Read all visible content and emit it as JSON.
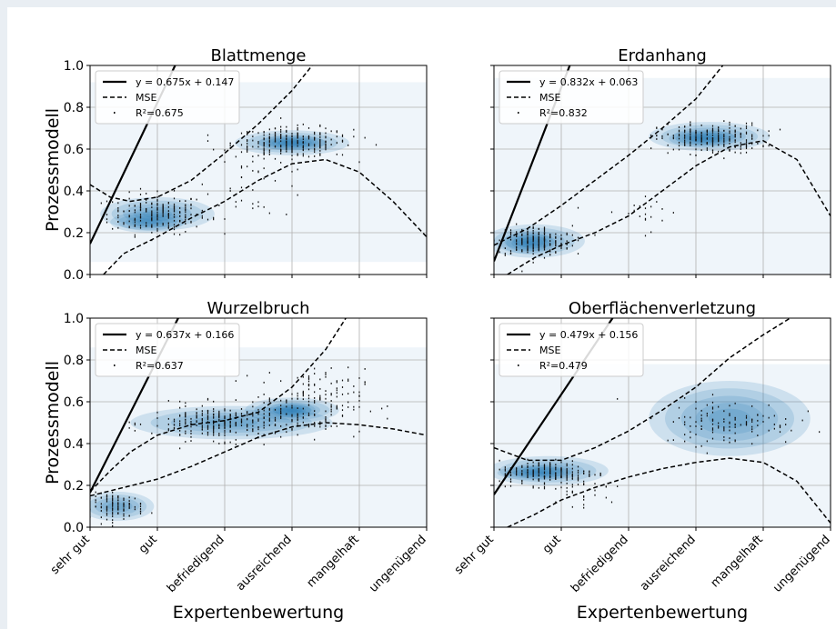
{
  "figure": {
    "ylabel": "Prozessmodell",
    "xlabel": "Expertenbewertung",
    "x_tick_labels": [
      "sehr gut",
      "gut",
      "befriedigend",
      "ausreichend",
      "mangelhaft",
      "ungenügend"
    ],
    "y_tick_labels": [
      "0.0",
      "0.2",
      "0.4",
      "0.6",
      "0.8",
      "1.0"
    ],
    "colors": {
      "density": "#1f77b4",
      "line": "#000000",
      "grid": "#b0b0b0"
    }
  },
  "chart_data": [
    {
      "type": "scatter",
      "title": "Blattmenge",
      "xlabel": "",
      "ylabel": "Prozessmodell",
      "ylim": [
        0,
        1
      ],
      "xlim": [
        0,
        5
      ],
      "legend_position": "top-left",
      "legend": [
        "y = 0.675x + 0.147",
        "MSE",
        "R²=0.675"
      ],
      "regression": {
        "slope": 0.675,
        "intercept": 0.147,
        "r2": 0.675
      },
      "mse_upper": [
        [
          0,
          0.43
        ],
        [
          0.3,
          0.37
        ],
        [
          0.6,
          0.35
        ],
        [
          1,
          0.37
        ],
        [
          1.5,
          0.45
        ],
        [
          2,
          0.58
        ],
        [
          2.5,
          0.72
        ],
        [
          3,
          0.88
        ],
        [
          3.3,
          1.0
        ]
      ],
      "mse_lower": [
        [
          0.2,
          0.0
        ],
        [
          0.5,
          0.1
        ],
        [
          1,
          0.18
        ],
        [
          1.5,
          0.27
        ],
        [
          2,
          0.35
        ],
        [
          2.5,
          0.45
        ],
        [
          3,
          0.53
        ],
        [
          3.5,
          0.55
        ],
        [
          4,
          0.49
        ],
        [
          4.5,
          0.35
        ],
        [
          5,
          0.18
        ]
      ],
      "density": [
        {
          "cx": 1.0,
          "cy": 0.29,
          "rx": 0.85,
          "ry": 0.08
        },
        {
          "cx": 0.85,
          "cy": 0.25,
          "rx": 0.55,
          "ry": 0.05
        },
        {
          "cx": 3.0,
          "cy": 0.63,
          "rx": 0.85,
          "ry": 0.06
        },
        {
          "cx": 3.0,
          "cy": 0.63,
          "rx": 0.5,
          "ry": 0.035
        }
      ],
      "density_bg": {
        "x0": 0,
        "x1": 5,
        "y0": 0.06,
        "y1": 0.92
      },
      "clusters": [
        {
          "cx": 1.0,
          "cy": 0.29,
          "sx": 0.65,
          "sy": 0.08,
          "n": 210
        },
        {
          "cx": 3.0,
          "cy": 0.63,
          "sx": 0.8,
          "sy": 0.06,
          "n": 260
        },
        {
          "cx": 2.5,
          "cy": 0.45,
          "sx": 0.7,
          "sy": 0.15,
          "n": 40
        }
      ]
    },
    {
      "type": "scatter",
      "title": "Erdanhang",
      "xlabel": "",
      "ylabel": "",
      "ylim": [
        0,
        1
      ],
      "xlim": [
        0,
        5
      ],
      "legend_position": "top-left",
      "legend": [
        "y = 0.832x + 0.063",
        "MSE",
        "R²=0.832"
      ],
      "regression": {
        "slope": 0.832,
        "intercept": 0.063,
        "r2": 0.832
      },
      "mse_upper": [
        [
          0,
          0.14
        ],
        [
          0.5,
          0.22
        ],
        [
          1,
          0.33
        ],
        [
          1.5,
          0.45
        ],
        [
          2,
          0.57
        ],
        [
          2.5,
          0.7
        ],
        [
          3,
          0.84
        ],
        [
          3.4,
          1.0
        ]
      ],
      "mse_lower": [
        [
          0.2,
          0.0
        ],
        [
          0.6,
          0.08
        ],
        [
          1,
          0.14
        ],
        [
          1.5,
          0.2
        ],
        [
          2,
          0.28
        ],
        [
          2.5,
          0.4
        ],
        [
          3,
          0.52
        ],
        [
          3.5,
          0.61
        ],
        [
          4,
          0.64
        ],
        [
          4.5,
          0.55
        ],
        [
          5,
          0.28
        ]
      ],
      "density": [
        {
          "cx": 0.6,
          "cy": 0.16,
          "rx": 0.75,
          "ry": 0.08
        },
        {
          "cx": 0.5,
          "cy": 0.15,
          "rx": 0.4,
          "ry": 0.05
        },
        {
          "cx": 3.2,
          "cy": 0.66,
          "rx": 0.9,
          "ry": 0.07
        },
        {
          "cx": 3.1,
          "cy": 0.65,
          "rx": 0.5,
          "ry": 0.04
        }
      ],
      "density_bg": {
        "x0": 0,
        "x1": 5,
        "y0": 0.0,
        "y1": 0.94
      },
      "clusters": [
        {
          "cx": 0.6,
          "cy": 0.16,
          "sx": 0.5,
          "sy": 0.06,
          "n": 230
        },
        {
          "cx": 3.2,
          "cy": 0.65,
          "sx": 0.7,
          "sy": 0.06,
          "n": 240
        },
        {
          "cx": 2.2,
          "cy": 0.3,
          "sx": 0.6,
          "sy": 0.08,
          "n": 20
        }
      ]
    },
    {
      "type": "scatter",
      "title": "Wurzelbruch",
      "xlabel": "Expertenbewertung",
      "ylabel": "Prozessmodell",
      "ylim": [
        0,
        1
      ],
      "xlim": [
        0,
        5
      ],
      "legend_position": "top-left",
      "legend": [
        "y = 0.637x + 0.166",
        "MSE",
        "R²=0.637"
      ],
      "regression": {
        "slope": 0.637,
        "intercept": 0.166,
        "r2": 0.637
      },
      "mse_upper": [
        [
          0,
          0.17
        ],
        [
          0.3,
          0.27
        ],
        [
          0.6,
          0.36
        ],
        [
          1,
          0.44
        ],
        [
          1.5,
          0.49
        ],
        [
          2,
          0.51
        ],
        [
          2.5,
          0.55
        ],
        [
          3,
          0.67
        ],
        [
          3.5,
          0.85
        ],
        [
          3.8,
          1.0
        ]
      ],
      "mse_lower": [
        [
          0,
          0.15
        ],
        [
          0.5,
          0.19
        ],
        [
          1,
          0.23
        ],
        [
          1.5,
          0.29
        ],
        [
          2,
          0.36
        ],
        [
          2.5,
          0.43
        ],
        [
          3,
          0.48
        ],
        [
          3.5,
          0.5
        ],
        [
          4,
          0.49
        ],
        [
          4.5,
          0.47
        ],
        [
          5,
          0.44
        ]
      ],
      "density": [
        {
          "cx": 0.4,
          "cy": 0.1,
          "rx": 0.55,
          "ry": 0.07
        },
        {
          "cx": 2.1,
          "cy": 0.5,
          "rx": 1.5,
          "ry": 0.08
        },
        {
          "cx": 3.0,
          "cy": 0.56,
          "rx": 0.7,
          "ry": 0.06
        },
        {
          "cx": 3.0,
          "cy": 0.56,
          "rx": 0.35,
          "ry": 0.035
        }
      ],
      "density_bg": {
        "x0": 0,
        "x1": 5,
        "y0": 0.0,
        "y1": 0.86
      },
      "clusters": [
        {
          "cx": 0.4,
          "cy": 0.1,
          "sx": 0.35,
          "sy": 0.05,
          "n": 110
        },
        {
          "cx": 2.0,
          "cy": 0.5,
          "sx": 1.0,
          "sy": 0.07,
          "n": 300
        },
        {
          "cx": 3.3,
          "cy": 0.6,
          "sx": 0.7,
          "sy": 0.13,
          "n": 170
        }
      ]
    },
    {
      "type": "scatter",
      "title": "Oberflächenverletzung",
      "xlabel": "Expertenbewertung",
      "ylabel": "",
      "ylim": [
        0,
        1
      ],
      "xlim": [
        0,
        5
      ],
      "legend_position": "top-left",
      "legend": [
        "y = 0.479x + 0.156",
        "MSE",
        "R²=0.479"
      ],
      "regression": {
        "slope": 0.479,
        "intercept": 0.156,
        "r2": 0.479
      },
      "mse_upper": [
        [
          0,
          0.38
        ],
        [
          0.5,
          0.32
        ],
        [
          1,
          0.32
        ],
        [
          1.5,
          0.38
        ],
        [
          2,
          0.46
        ],
        [
          2.5,
          0.56
        ],
        [
          3,
          0.67
        ],
        [
          3.5,
          0.81
        ],
        [
          4,
          0.92
        ],
        [
          4.4,
          1.0
        ]
      ],
      "mse_lower": [
        [
          0.2,
          0.0
        ],
        [
          0.6,
          0.06
        ],
        [
          1,
          0.13
        ],
        [
          1.5,
          0.19
        ],
        [
          2,
          0.24
        ],
        [
          2.5,
          0.28
        ],
        [
          3,
          0.31
        ],
        [
          3.5,
          0.33
        ],
        [
          4,
          0.31
        ],
        [
          4.5,
          0.22
        ],
        [
          5,
          0.02
        ]
      ],
      "density": [
        {
          "cx": 0.8,
          "cy": 0.27,
          "rx": 0.9,
          "ry": 0.07
        },
        {
          "cx": 0.6,
          "cy": 0.26,
          "rx": 0.55,
          "ry": 0.035
        },
        {
          "cx": 3.5,
          "cy": 0.52,
          "rx": 1.2,
          "ry": 0.18
        }
      ],
      "density_bg": {
        "x0": 0,
        "x1": 5,
        "y0": 0.0,
        "y1": 0.78
      },
      "clusters": [
        {
          "cx": 0.8,
          "cy": 0.26,
          "sx": 0.65,
          "sy": 0.05,
          "n": 210
        },
        {
          "cx": 3.5,
          "cy": 0.5,
          "sx": 0.9,
          "sy": 0.09,
          "n": 120
        },
        {
          "cx": 1.2,
          "cy": 0.17,
          "sx": 0.6,
          "sy": 0.08,
          "n": 30
        }
      ]
    }
  ]
}
